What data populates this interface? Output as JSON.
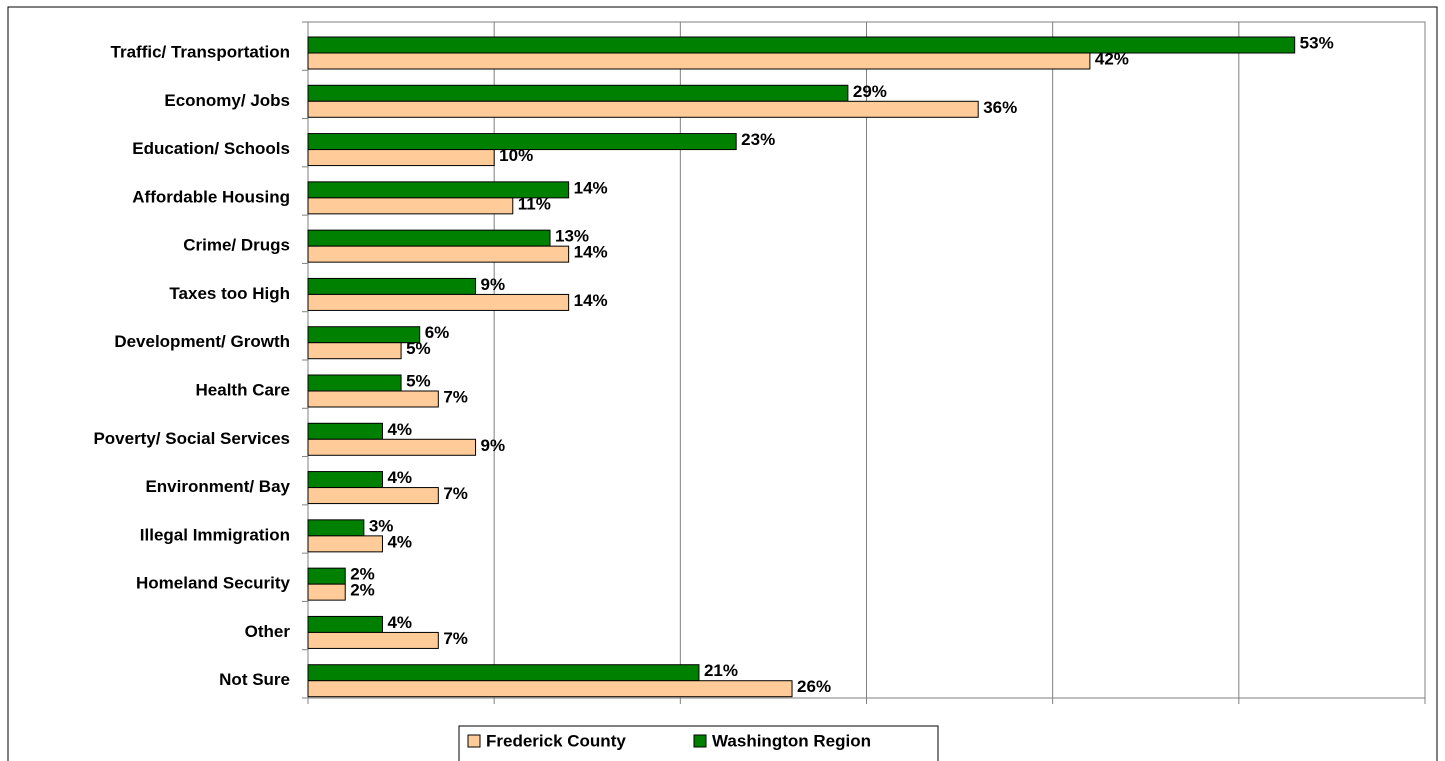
{
  "chart_data": {
    "type": "hbar",
    "categories": [
      "Traffic/ Transportation",
      "Economy/ Jobs",
      "Education/ Schools",
      "Affordable Housing",
      "Crime/ Drugs",
      "Taxes too High",
      "Development/ Growth",
      "Health Care",
      "Poverty/ Social Services",
      "Environment/ Bay",
      "Illegal Immigration",
      "Homeland Security",
      "Other",
      "Not Sure"
    ],
    "series": [
      {
        "name": "Frederick County",
        "color": "#ffcc99",
        "values": [
          42,
          36,
          10,
          11,
          14,
          14,
          5,
          7,
          9,
          7,
          4,
          2,
          7,
          26
        ],
        "value_labels": [
          "42%",
          "36%",
          "10%",
          "11%",
          "14%",
          "14%",
          "5%",
          "7%",
          "9%",
          "7%",
          "4%",
          "2%",
          "7%",
          "26%"
        ]
      },
      {
        "name": "Washington Region",
        "color": "#008000",
        "values": [
          53,
          29,
          23,
          14,
          13,
          9,
          6,
          5,
          4,
          4,
          3,
          2,
          4,
          21
        ],
        "value_labels": [
          "53%",
          "29%",
          "23%",
          "14%",
          "13%",
          "9%",
          "6%",
          "5%",
          "4%",
          "4%",
          "3%",
          "2%",
          "4%",
          "21%"
        ]
      }
    ],
    "xlim": [
      0,
      60
    ],
    "xticks": [
      0,
      10,
      20,
      30,
      40,
      50,
      60
    ],
    "grid": true,
    "legend": "bottom"
  }
}
